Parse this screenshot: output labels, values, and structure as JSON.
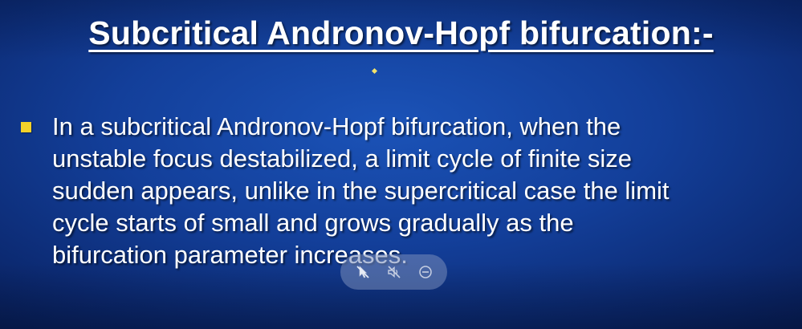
{
  "slide": {
    "title": "Subcritical Andronov-Hopf bifurcation:-",
    "bullets": [
      {
        "lines": [
          "In a subcritical Andronov-Hopf bifurcation, when the",
          "unstable focus destabilized, a limit cycle of finite size",
          "sudden appears, unlike in the supercritical case the limit",
          "cycle starts of small and grows gradually as the",
          "bifurcation parameter increases."
        ]
      }
    ],
    "colors": {
      "background": "#133f9a",
      "text": "#ffffff",
      "bullet": "#f5d22a",
      "sparkle": "#f3e36a"
    }
  },
  "presenter_toolbar": {
    "buttons": [
      {
        "icon": "pointer-off-icon"
      },
      {
        "icon": "mute-icon"
      },
      {
        "icon": "minus-circle-icon"
      }
    ]
  }
}
